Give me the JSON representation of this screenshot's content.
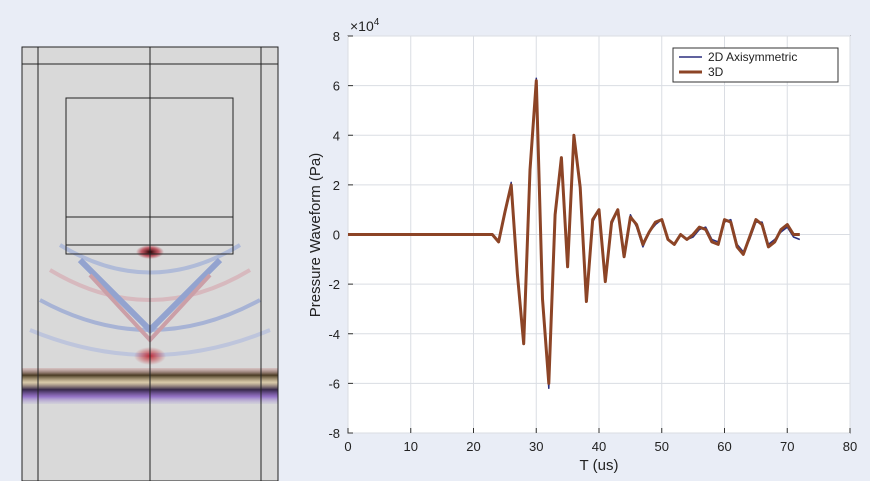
{
  "simulation": {
    "colors": {
      "background": "#d8d8d8",
      "positive": "#b3202a",
      "negative": "#3552b8"
    }
  },
  "chart_data": {
    "type": "line",
    "xlabel": "T (us)",
    "ylabel": "Pressure Waveform (Pa)",
    "y_multiplier": "×10",
    "y_multiplier_exponent": "4",
    "xlim": [
      0,
      80
    ],
    "ylim": [
      -8,
      8
    ],
    "xticks": [
      0,
      10,
      20,
      30,
      40,
      50,
      60,
      70,
      80
    ],
    "yticks": [
      -8,
      -6,
      -4,
      -2,
      0,
      2,
      4,
      6,
      8
    ],
    "grid": true,
    "legend_position": "top-right",
    "series": [
      {
        "name": "2D Axisymmetric",
        "color": "#2b2f7e",
        "x": [
          0,
          23,
          24,
          25,
          26,
          27,
          28,
          29,
          30,
          31,
          32,
          33,
          34,
          35,
          36,
          37,
          38,
          39,
          40,
          41,
          42,
          43,
          44,
          45,
          46,
          47,
          48,
          49,
          50,
          51,
          52,
          53,
          54,
          55,
          56,
          57,
          58,
          59,
          60,
          61,
          62,
          63,
          64,
          65,
          66,
          67,
          68,
          69,
          70,
          71,
          72
        ],
        "y": [
          0,
          0,
          -0.3,
          0.8,
          2.1,
          -1.5,
          -4.3,
          2.5,
          6.3,
          -2.5,
          -6.2,
          0.8,
          3.0,
          -1.2,
          3.9,
          2.0,
          -2.6,
          0.5,
          1.0,
          -1.8,
          0.4,
          1.0,
          -0.8,
          0.8,
          0.3,
          -0.5,
          0.1,
          0.4,
          0.6,
          -0.2,
          -0.4,
          0.0,
          -0.2,
          -0.1,
          0.2,
          0.3,
          -0.2,
          -0.3,
          0.5,
          0.6,
          -0.4,
          -0.7,
          -0.2,
          0.5,
          0.5,
          -0.4,
          -0.2,
          0.1,
          0.3,
          -0.1,
          -0.2
        ]
      },
      {
        "name": "3D",
        "color": "#8c4426",
        "x": [
          0,
          23,
          24,
          25,
          26,
          27,
          28,
          29,
          30,
          31,
          32,
          33,
          34,
          35,
          36,
          37,
          38,
          39,
          40,
          41,
          42,
          43,
          44,
          45,
          46,
          47,
          48,
          49,
          50,
          51,
          52,
          53,
          54,
          55,
          56,
          57,
          58,
          59,
          60,
          61,
          62,
          63,
          64,
          65,
          66,
          67,
          68,
          69,
          70,
          71,
          72
        ],
        "y": [
          0,
          0,
          -0.3,
          0.9,
          2.0,
          -1.6,
          -4.4,
          2.6,
          6.2,
          -2.6,
          -6.0,
          0.8,
          3.1,
          -1.3,
          4.0,
          1.9,
          -2.7,
          0.6,
          1.0,
          -1.9,
          0.5,
          1.0,
          -0.9,
          0.7,
          0.4,
          -0.4,
          0.1,
          0.5,
          0.6,
          -0.2,
          -0.4,
          0.0,
          -0.2,
          0.0,
          0.3,
          0.2,
          -0.3,
          -0.4,
          0.6,
          0.5,
          -0.5,
          -0.8,
          -0.1,
          0.6,
          0.4,
          -0.5,
          -0.3,
          0.2,
          0.4,
          0.0,
          0.0
        ]
      }
    ]
  }
}
